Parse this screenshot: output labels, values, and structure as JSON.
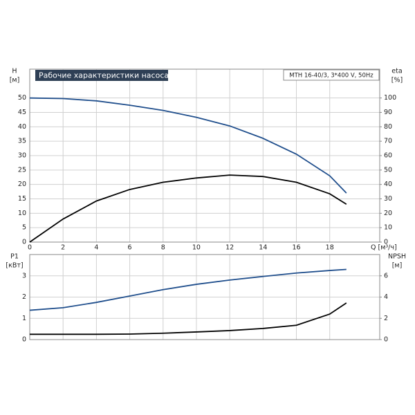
{
  "chart_data": [
    {
      "type": "line",
      "title": "Рабочие характеристики насоса",
      "subtitle": "MTH 16-40/3, 3*400 V, 50Hz",
      "ylabel": "H",
      "ylabel_unit": "[м]",
      "y2label": "eta",
      "y2label_unit": "[%]",
      "xlabel": "Q [м³/ч]",
      "x": [
        0,
        2,
        4,
        6,
        8,
        10,
        12,
        14,
        16,
        18,
        19
      ],
      "series": [
        {
          "color": "#1f4e8c",
          "values": [
            50,
            49.8,
            49,
            47.5,
            45.7,
            43.3,
            40.3,
            36,
            30.5,
            23,
            17
          ]
        },
        {
          "color": "#000000",
          "axis": "y2",
          "values": [
            0,
            16,
            28.5,
            36.5,
            41.5,
            44.5,
            46.5,
            45.5,
            41.5,
            33.5,
            26.3
          ]
        }
      ],
      "xlim": [
        0,
        21
      ],
      "xticks": [
        0,
        2,
        4,
        6,
        8,
        10,
        12,
        14,
        16,
        18
      ],
      "ylim": [
        0,
        60
      ],
      "yticks": [
        0,
        5,
        10,
        15,
        20,
        25,
        30,
        35,
        40,
        45,
        50
      ],
      "y2lim": [
        0,
        120
      ],
      "y2ticks": [
        0,
        10,
        20,
        30,
        40,
        50,
        60,
        70,
        80,
        90,
        100
      ],
      "grid": true
    },
    {
      "type": "line",
      "ylabel": "P1",
      "ylabel_unit": "[кВт]",
      "y2label": "NPSH",
      "y2label_unit": "[м]",
      "x": [
        0,
        2,
        4,
        6,
        8,
        10,
        12,
        14,
        16,
        18,
        19
      ],
      "series": [
        {
          "color": "#1f4e8c",
          "values": [
            1.38,
            1.5,
            1.75,
            2.05,
            2.35,
            2.6,
            2.8,
            2.97,
            3.13,
            3.25,
            3.3
          ]
        },
        {
          "color": "#000000",
          "axis": "y2",
          "values": [
            0.5,
            0.5,
            0.5,
            0.52,
            0.6,
            0.72,
            0.85,
            1.05,
            1.35,
            2.4,
            3.45
          ]
        }
      ],
      "xlim": [
        0,
        21
      ],
      "xticks": [
        0,
        2,
        4,
        6,
        8,
        10,
        12,
        14,
        16,
        18
      ],
      "show_xtick_labels": false,
      "ylim": [
        0,
        4
      ],
      "yticks": [
        0,
        1,
        2,
        3
      ],
      "y2lim": [
        0,
        8
      ],
      "y2ticks": [
        0,
        2,
        4,
        6
      ],
      "grid": true
    }
  ]
}
